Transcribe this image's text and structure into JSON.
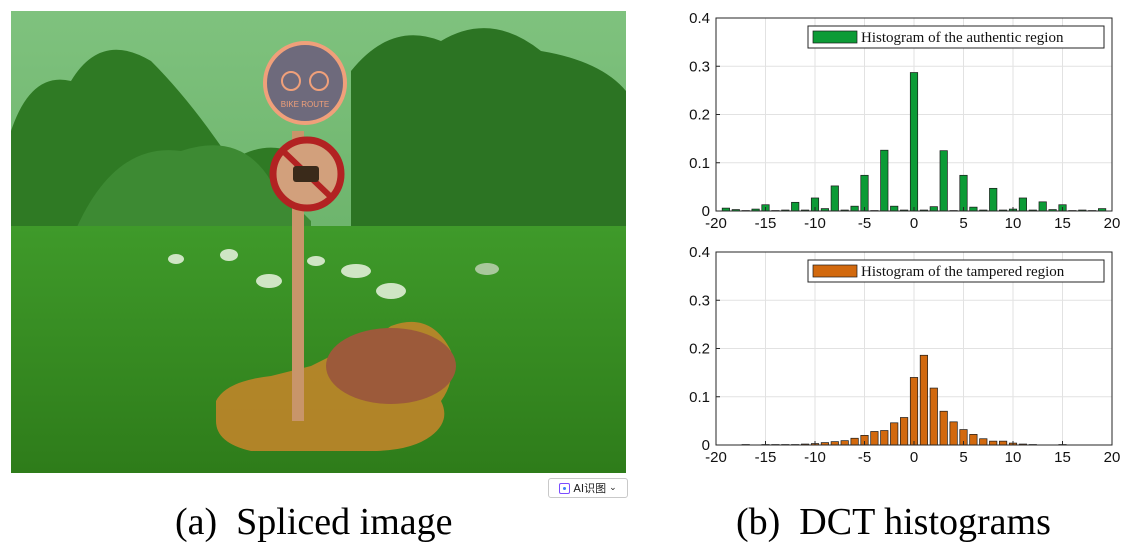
{
  "ai_button": {
    "label": "AI识图",
    "icon": "scan-icon"
  },
  "captions": {
    "a": "(a)  Spliced image",
    "b": "(b)  DCT histograms"
  },
  "chart_data": [
    {
      "type": "bar",
      "series": [
        {
          "name": "Histogram of the authentic region",
          "color": "#0c9b36",
          "x": [
            -19,
            -18,
            -17,
            -16,
            -15,
            -14,
            -13,
            -12,
            -11,
            -10,
            -9,
            -8,
            -7,
            -6,
            -5,
            -4,
            -3,
            -2,
            -1,
            0,
            1,
            2,
            3,
            4,
            5,
            6,
            7,
            8,
            9,
            10,
            11,
            12,
            13,
            14,
            15,
            16,
            17,
            18,
            19
          ],
          "values": [
            0.006,
            0.003,
            0.001,
            0.004,
            0.013,
            0.001,
            0.002,
            0.018,
            0.002,
            0.027,
            0.005,
            0.052,
            0.002,
            0.01,
            0.074,
            0.001,
            0.126,
            0.01,
            0.002,
            0.287,
            0.002,
            0.009,
            0.125,
            0.001,
            0.074,
            0.008,
            0.002,
            0.047,
            0.002,
            0.004,
            0.027,
            0.002,
            0.019,
            0.003,
            0.013,
            0.001,
            0.002,
            0.001,
            0.005
          ]
        }
      ],
      "xlim": [
        -20,
        20
      ],
      "ylim": [
        0,
        0.4
      ],
      "xticks": [
        -20,
        -15,
        -10,
        -5,
        0,
        5,
        10,
        15,
        20
      ],
      "yticks": [
        0,
        0.1,
        0.2,
        0.3,
        0.4
      ],
      "grid": true,
      "legend": "top-right"
    },
    {
      "type": "bar",
      "series": [
        {
          "name": "Histogram of the tampered region",
          "color": "#d2690e",
          "x": [
            -19,
            -18,
            -17,
            -16,
            -15,
            -14,
            -13,
            -12,
            -11,
            -10,
            -9,
            -8,
            -7,
            -6,
            -5,
            -4,
            -3,
            -2,
            -1,
            0,
            1,
            2,
            3,
            4,
            5,
            6,
            7,
            8,
            9,
            10,
            11,
            12,
            13,
            14,
            15,
            16,
            17,
            18,
            19
          ],
          "values": [
            0.0,
            0.0,
            0.001,
            0.0,
            0.001,
            0.001,
            0.001,
            0.001,
            0.002,
            0.003,
            0.005,
            0.007,
            0.009,
            0.014,
            0.02,
            0.028,
            0.03,
            0.046,
            0.057,
            0.14,
            0.186,
            0.118,
            0.07,
            0.048,
            0.032,
            0.022,
            0.013,
            0.008,
            0.008,
            0.004,
            0.002,
            0.001,
            0.0,
            0.0,
            0.001,
            0.0,
            0.0,
            0.0,
            0.0
          ]
        }
      ],
      "xlim": [
        -20,
        20
      ],
      "ylim": [
        0,
        0.4
      ],
      "xticks": [
        -20,
        -15,
        -10,
        -5,
        0,
        5,
        10,
        15,
        20
      ],
      "yticks": [
        0,
        0.1,
        0.2,
        0.3,
        0.4
      ],
      "grid": true,
      "legend": "top-right"
    }
  ]
}
